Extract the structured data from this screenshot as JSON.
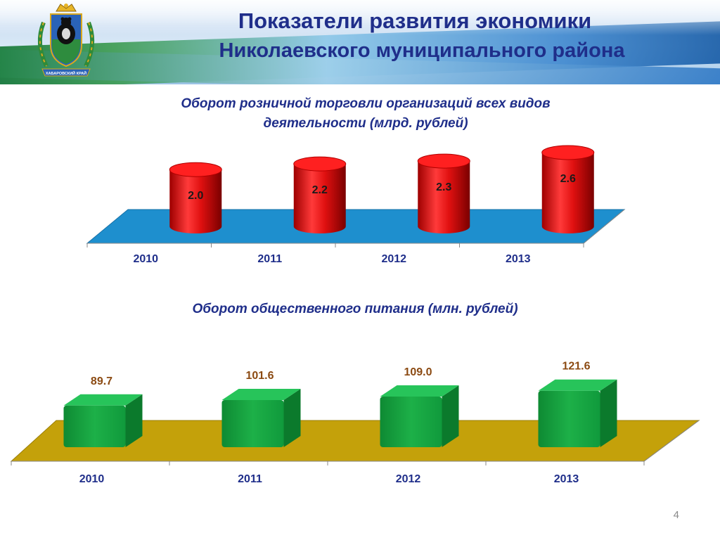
{
  "header": {
    "title_line1": "Показатели развития экономики",
    "title_line2": "Николаевского муниципального района",
    "emblem_caption": "ХАБАРОВСКИЙ КРАЙ"
  },
  "page_number": "4",
  "colors": {
    "title": "#1f2e8a",
    "retail_bar": "#e01010",
    "retail_floor": "#1e8fce",
    "food_bar": "#1db048",
    "food_floor": "#c4a10a",
    "food_label": "#8b4a12"
  },
  "chart_data": [
    {
      "type": "bar",
      "style": "3d-cylinder",
      "title": "Оборот розничной торговли организаций всех видов деятельности (млрд. рублей)",
      "title_lines": [
        "Оборот розничной торговли организаций всех видов",
        "деятельности (млрд. рублей)"
      ],
      "categories": [
        "2010",
        "2011",
        "2012",
        "2013"
      ],
      "values": [
        2.0,
        2.2,
        2.3,
        2.6
      ],
      "value_labels": [
        "2.0",
        "2.2",
        "2.3",
        "2.6"
      ],
      "grid": false,
      "legend": "none"
    },
    {
      "type": "bar",
      "style": "3d-box",
      "title": "Оборот общественного питания (млн. рублей)",
      "title_lines": [
        "Оборот общественного питания (млн. рублей)"
      ],
      "categories": [
        "2010",
        "2011",
        "2012",
        "2013"
      ],
      "values": [
        89.7,
        101.6,
        109.0,
        121.6
      ],
      "value_labels": [
        "89.7",
        "101.6",
        "109.0",
        "121.6"
      ],
      "grid": false,
      "legend": "none"
    }
  ]
}
